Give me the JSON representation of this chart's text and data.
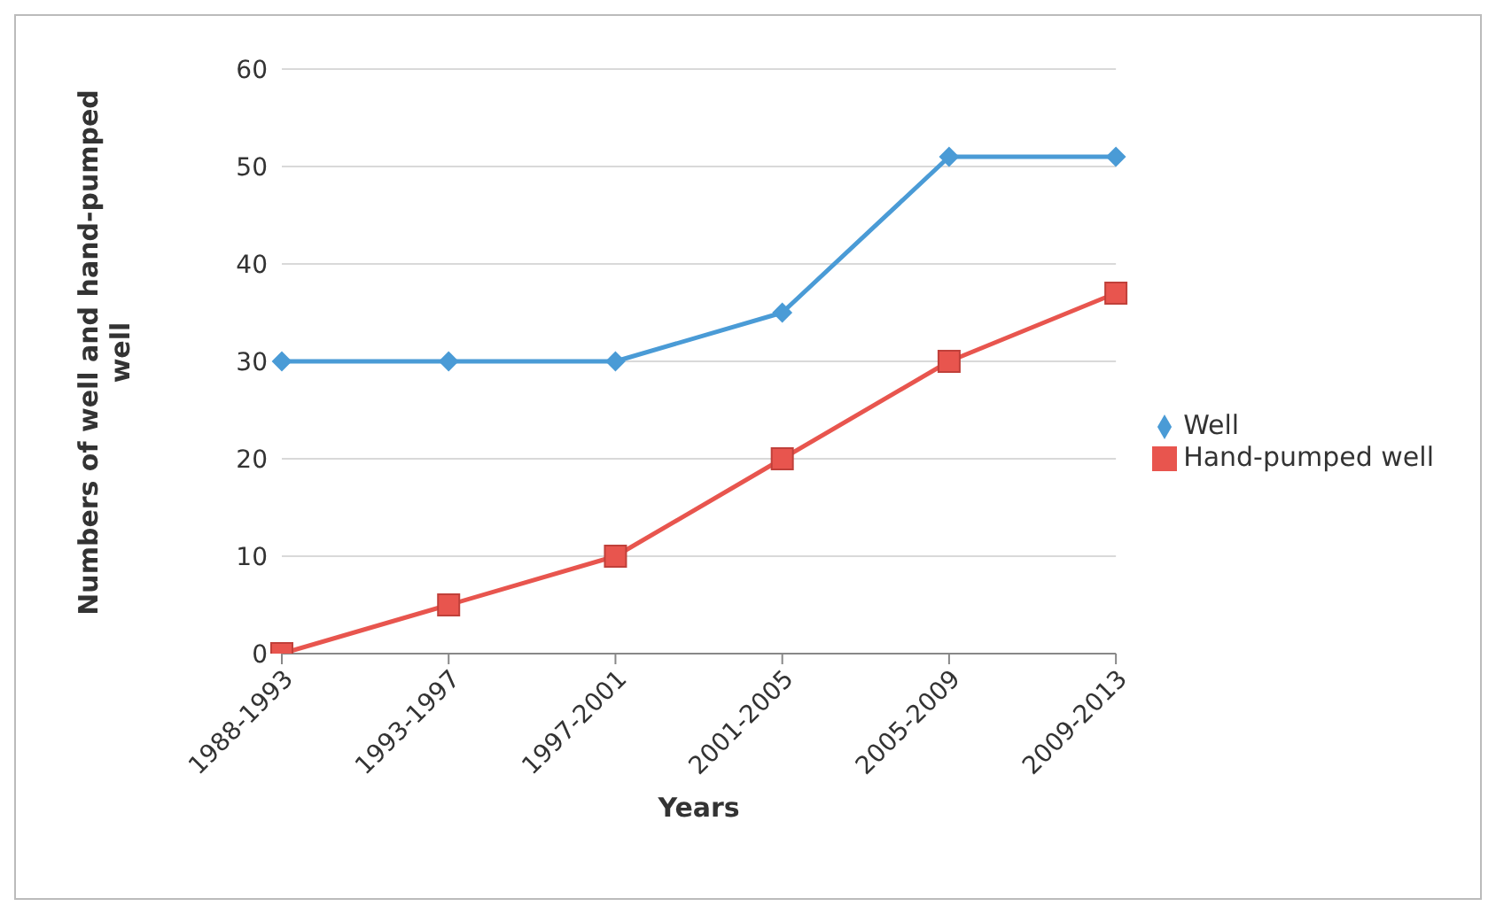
{
  "chart_data": {
    "type": "line",
    "xlabel": "Years",
    "ylabel": "Numbers of well and hand-pumped well",
    "categories": [
      "1988-1993",
      "1993-1997",
      "1997-2001",
      "2001-2005",
      "2005-2009",
      "2009-2013"
    ],
    "series": [
      {
        "name": "Well",
        "color": "#4a9bd6",
        "marker": "diamond",
        "values": [
          30,
          30,
          30,
          35,
          51,
          51
        ]
      },
      {
        "name": "Hand-pumped well",
        "color": "#e8554e",
        "marker": "square",
        "values": [
          0,
          5,
          10,
          20,
          30,
          37
        ]
      }
    ],
    "ylim": [
      0,
      60
    ],
    "yticks": [
      0,
      10,
      20,
      30,
      40,
      50,
      60
    ],
    "grid": "y",
    "legend": "right"
  }
}
